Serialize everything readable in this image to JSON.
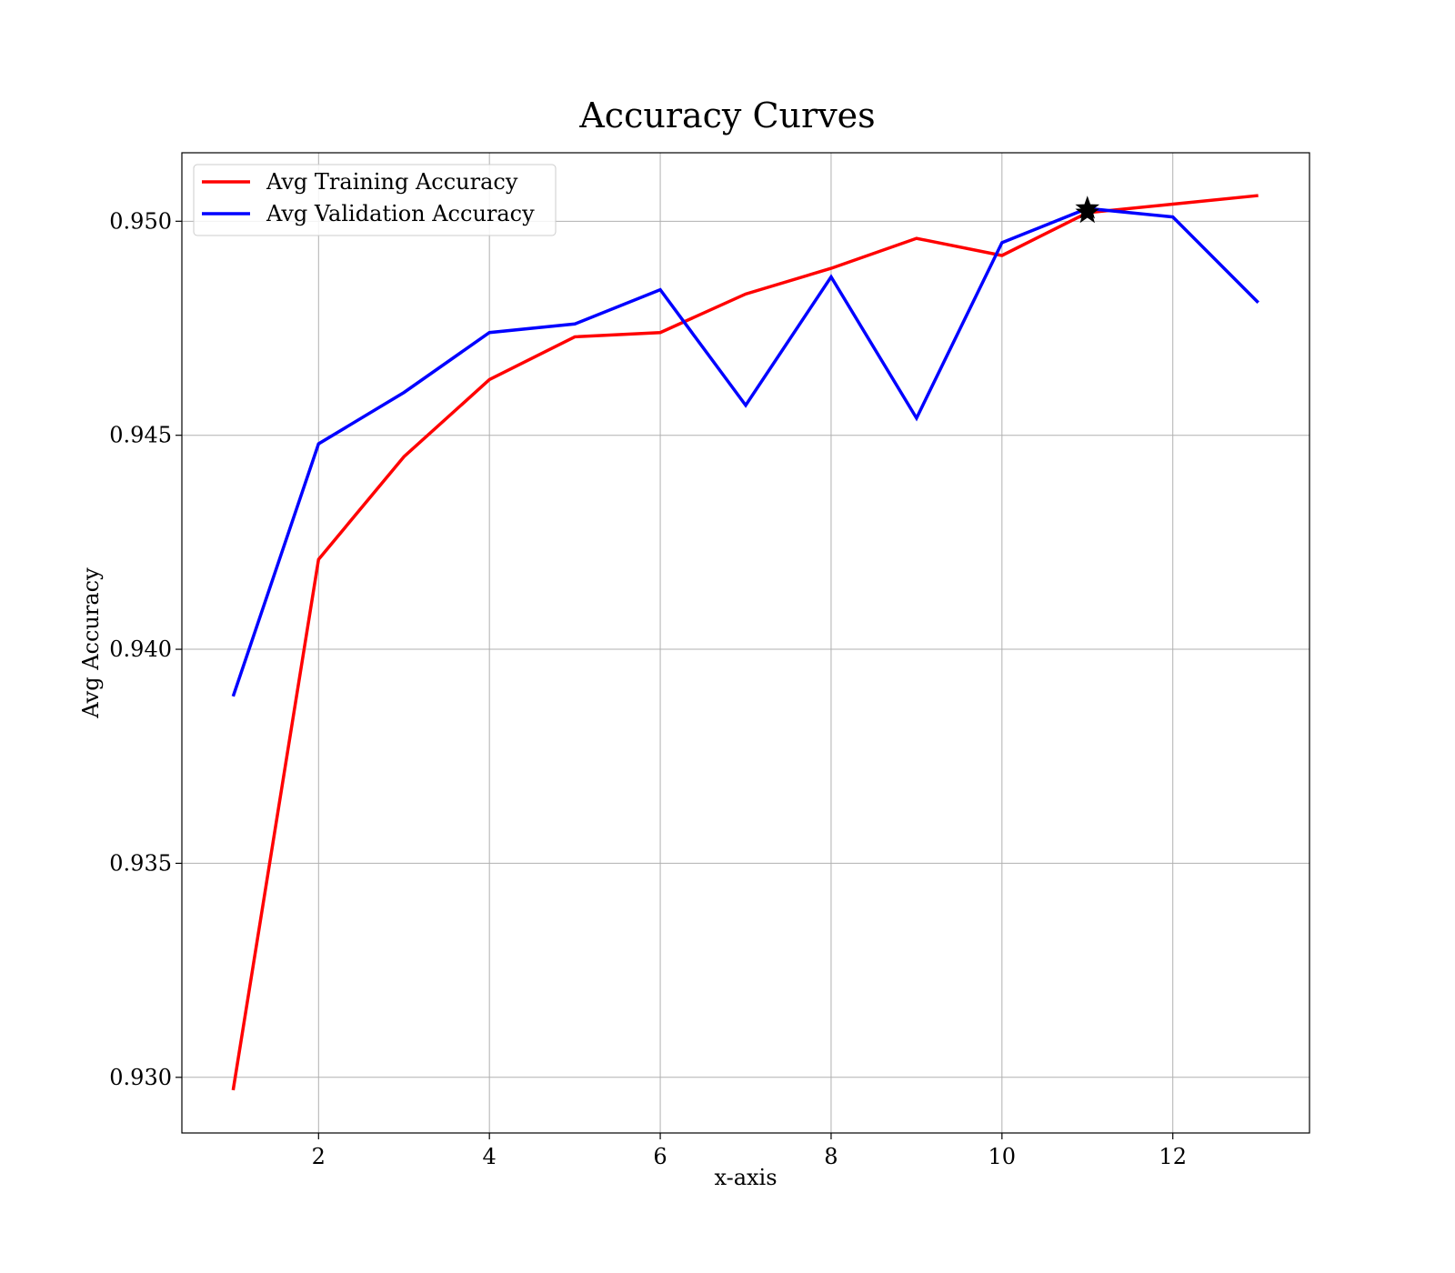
{
  "chart_data": {
    "type": "line",
    "title": "Accuracy Curves",
    "xlabel": "x-axis",
    "ylabel": "Avg Accuracy",
    "xlim": [
      0.4,
      13.6
    ],
    "ylim": [
      0.9287,
      0.9516
    ],
    "xticks": [
      2,
      4,
      6,
      8,
      10,
      12
    ],
    "xtick_labels": [
      "2",
      "4",
      "6",
      "8",
      "10",
      "12"
    ],
    "yticks": [
      0.93,
      0.935,
      0.94,
      0.945,
      0.95
    ],
    "ytick_labels": [
      "0.930",
      "0.935",
      "0.940",
      "0.945",
      "0.950"
    ],
    "grid": true,
    "legend_position": "top-left",
    "x": [
      1,
      2,
      3,
      4,
      5,
      6,
      7,
      8,
      9,
      10,
      11,
      12,
      13
    ],
    "series": [
      {
        "name": "Avg Training Accuracy",
        "color": "#ff0000",
        "values": [
          0.9297,
          0.9421,
          0.9445,
          0.9463,
          0.9473,
          0.9474,
          0.9483,
          0.9489,
          0.9496,
          0.9492,
          0.9502,
          0.9504,
          0.9506
        ]
      },
      {
        "name": "Avg Validation Accuracy",
        "color": "#0000ff",
        "values": [
          0.9389,
          0.9448,
          0.946,
          0.9474,
          0.9476,
          0.9484,
          0.9457,
          0.9487,
          0.9454,
          0.9495,
          0.9503,
          0.9501,
          0.9481
        ]
      }
    ],
    "markers": [
      {
        "x": 11,
        "y": 0.9503,
        "shape": "star",
        "color": "#000000"
      },
      {
        "x": 11,
        "y": 0.9502,
        "shape": "star",
        "color": "#000000"
      }
    ]
  }
}
